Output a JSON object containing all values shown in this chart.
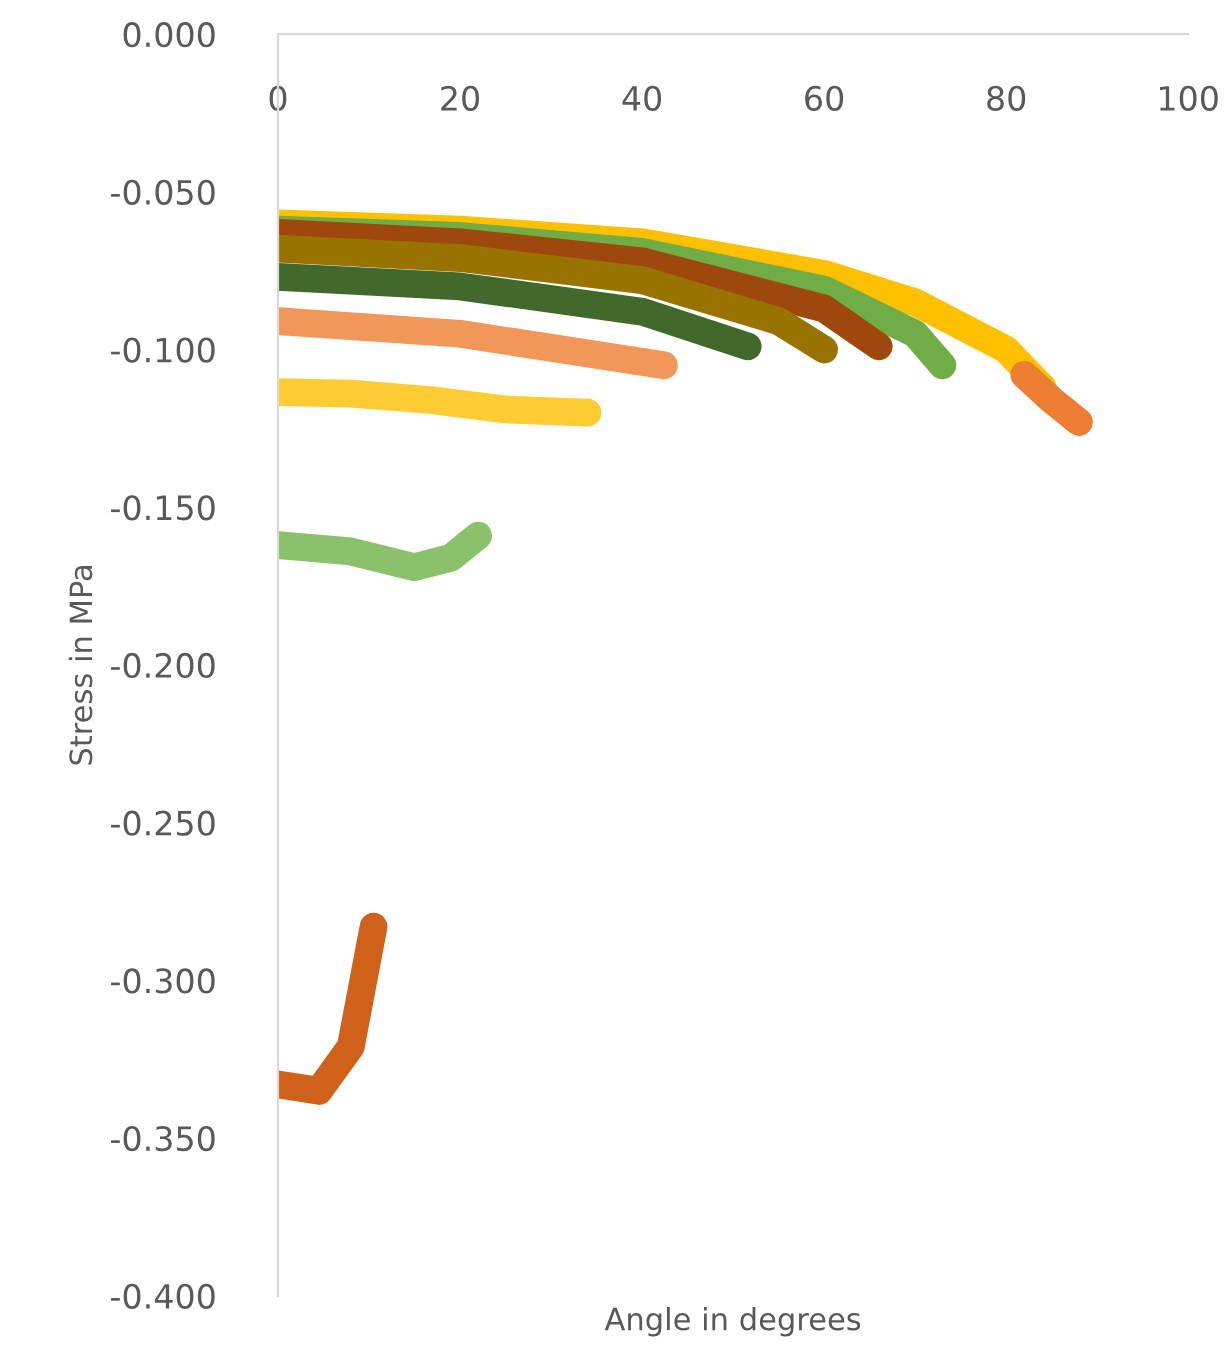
{
  "chart_data": {
    "type": "line",
    "xlabel": "Angle in degrees",
    "ylabel": "Stress in MPa",
    "xlim": [
      0,
      100
    ],
    "xticks": [
      0,
      20,
      40,
      60,
      80,
      100
    ],
    "ylim": [
      -0.4,
      0
    ],
    "yticks": [
      {
        "value": -0.4,
        "label": "-0.400"
      },
      {
        "value": -0.35,
        "label": "-0.350"
      },
      {
        "value": -0.3,
        "label": "-0.300"
      },
      {
        "value": -0.25,
        "label": "-0.250"
      },
      {
        "value": -0.2,
        "label": "-0.200"
      },
      {
        "value": -0.15,
        "label": "-0.150"
      },
      {
        "value": -0.1,
        "label": "-0.100"
      },
      {
        "value": -0.05,
        "label": "-0.050"
      },
      {
        "value": 0,
        "label": "0.000"
      }
    ],
    "grid": false,
    "legend": false,
    "marker": "none",
    "line_style": "solid",
    "series": [
      {
        "color": "#ffc000",
        "x": [
          0,
          20,
          40,
          60,
          70,
          80,
          84
        ],
        "values": [
          -0.06,
          -0.062,
          -0.066,
          -0.076,
          -0.085,
          -0.1,
          -0.112
        ]
      },
      {
        "color": "#ed7d31",
        "x": [
          82,
          85,
          88
        ],
        "values": [
          -0.108,
          -0.116,
          -0.123
        ]
      },
      {
        "color": "#70ad47",
        "x": [
          0,
          20,
          40,
          60,
          70,
          73
        ],
        "values": [
          -0.062,
          -0.064,
          -0.069,
          -0.081,
          -0.095,
          -0.105
        ]
      },
      {
        "color": "#9e480e",
        "x": [
          0,
          20,
          40,
          60,
          66
        ],
        "values": [
          -0.063,
          -0.066,
          -0.072,
          -0.087,
          -0.099
        ]
      },
      {
        "color": "#997300",
        "x": [
          0,
          20,
          40,
          55,
          60
        ],
        "values": [
          -0.068,
          -0.071,
          -0.078,
          -0.091,
          -0.1
        ]
      },
      {
        "color": "#43682b",
        "x": [
          0,
          20,
          40,
          51.6
        ],
        "values": [
          -0.077,
          -0.08,
          -0.088,
          -0.099
        ]
      },
      {
        "color": "#f1975a",
        "x": [
          0,
          20,
          42.4
        ],
        "values": [
          -0.091,
          -0.095,
          -0.105
        ]
      },
      {
        "color": "#ffcd33",
        "x": [
          0,
          8,
          16.7,
          25,
          34
        ],
        "values": [
          -0.1135,
          -0.114,
          -0.116,
          -0.119,
          -0.12
        ]
      },
      {
        "color": "#8bc16a",
        "x": [
          0,
          8,
          15,
          19,
          22
        ],
        "values": [
          -0.162,
          -0.164,
          -0.169,
          -0.166,
          -0.159
        ]
      },
      {
        "color": "#d0611a",
        "x": [
          0,
          4.5,
          8,
          10.5
        ],
        "values": [
          -0.333,
          -0.335,
          -0.321,
          -0.283
        ]
      }
    ]
  }
}
